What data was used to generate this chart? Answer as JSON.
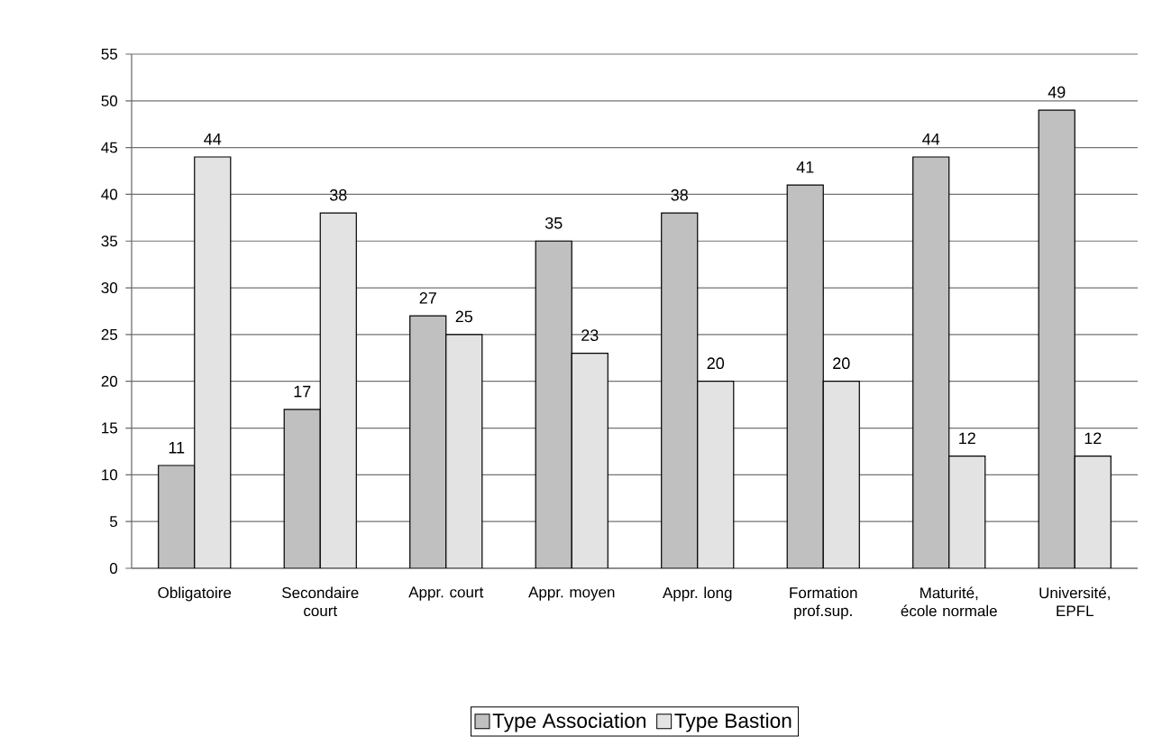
{
  "chart_data": {
    "type": "bar",
    "categories": [
      "Obligatoire",
      "Secondaire court",
      "Appr. court",
      "Appr. moyen",
      "Appr. long",
      "Formation prof.sup.",
      "Maturité, école normale",
      "Université, EPFL"
    ],
    "series": [
      {
        "name": "Type Association",
        "color": "#c0c0c0",
        "values": [
          11,
          17,
          27,
          35,
          38,
          41,
          44,
          49
        ]
      },
      {
        "name": "Type Bastion",
        "color": "#e3e3e3",
        "values": [
          44,
          38,
          25,
          23,
          20,
          20,
          12,
          12
        ]
      }
    ],
    "ylim": [
      0,
      55
    ],
    "yticks": [
      0,
      5,
      10,
      15,
      20,
      25,
      30,
      35,
      40,
      45,
      50,
      55
    ],
    "grid": "y",
    "legend": "bottom",
    "data_labels": true
  }
}
